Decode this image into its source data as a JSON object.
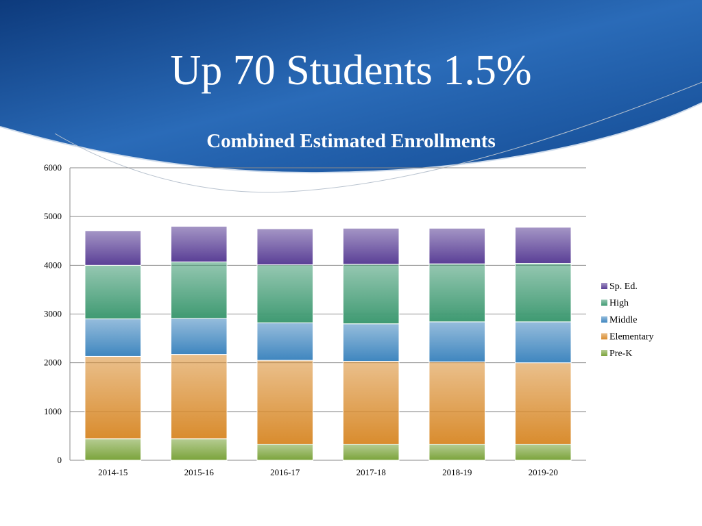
{
  "slide": {
    "title": "Up 70 Students 1.5%",
    "colors": {
      "header_dark": "#0d3a7c",
      "header_mid": "#2a6bb8",
      "header_light": "#5e9ad8"
    }
  },
  "chart_data": {
    "type": "bar",
    "stacked": true,
    "title": "Combined Estimated Enrollments",
    "xlabel": "",
    "ylabel": "",
    "categories": [
      "2014-15",
      "2015-16",
      "2016-17",
      "2017-18",
      "2018-19",
      "2019-20"
    ],
    "ylim": [
      0,
      6000
    ],
    "yticks": [
      0,
      1000,
      2000,
      3000,
      4000,
      5000,
      6000
    ],
    "grid": true,
    "legend_position": "right",
    "series": [
      {
        "name": "Pre-K",
        "color": "#7aa33a",
        "values": [
          440,
          440,
          330,
          330,
          330,
          330
        ]
      },
      {
        "name": "Elementary",
        "color": "#d98c2e",
        "values": [
          1690,
          1730,
          1720,
          1700,
          1690,
          1670
        ]
      },
      {
        "name": "Middle",
        "color": "#3f86bf",
        "values": [
          770,
          740,
          770,
          770,
          820,
          840
        ]
      },
      {
        "name": "High",
        "color": "#3f9a72",
        "values": [
          1100,
          1160,
          1190,
          1220,
          1190,
          1200
        ]
      },
      {
        "name": "Sp. Ed.",
        "color": "#5a3f96",
        "values": [
          710,
          730,
          740,
          740,
          730,
          740
        ]
      }
    ]
  }
}
